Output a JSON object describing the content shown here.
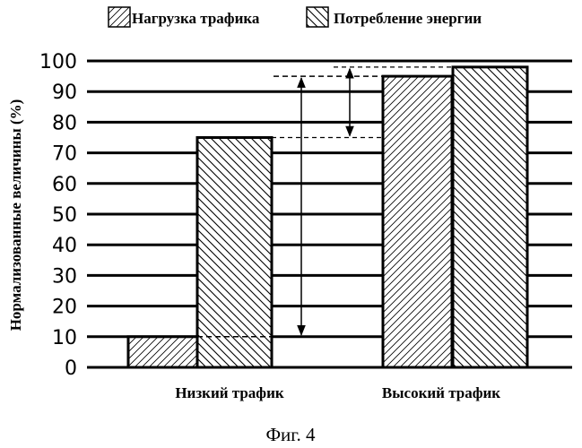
{
  "chart_data": {
    "type": "bar",
    "categories": [
      "Низкий трафик",
      "Высокий трафик"
    ],
    "series": [
      {
        "name": "Нагрузка трафика",
        "values": [
          10,
          95
        ],
        "pattern": "hatch-forward"
      },
      {
        "name": "Потребление энергии",
        "values": [
          75,
          98
        ],
        "pattern": "hatch-back"
      }
    ],
    "ylabel": "Нормализованные величины (%)",
    "xlabel": "",
    "ylim": [
      0,
      100
    ],
    "yticks": [
      "0",
      "10",
      "20",
      "30",
      "40",
      "50",
      "60",
      "70",
      "80",
      "90",
      "100"
    ],
    "grid": true,
    "legend": "top-center",
    "annotations": [
      {
        "type": "double-arrow",
        "from": 10,
        "to": 95
      },
      {
        "type": "double-arrow",
        "from": 75,
        "to": 98
      }
    ],
    "colors": {
      "ink": "#000000",
      "background": "#ffffff"
    }
  },
  "caption": "Фиг. 4"
}
